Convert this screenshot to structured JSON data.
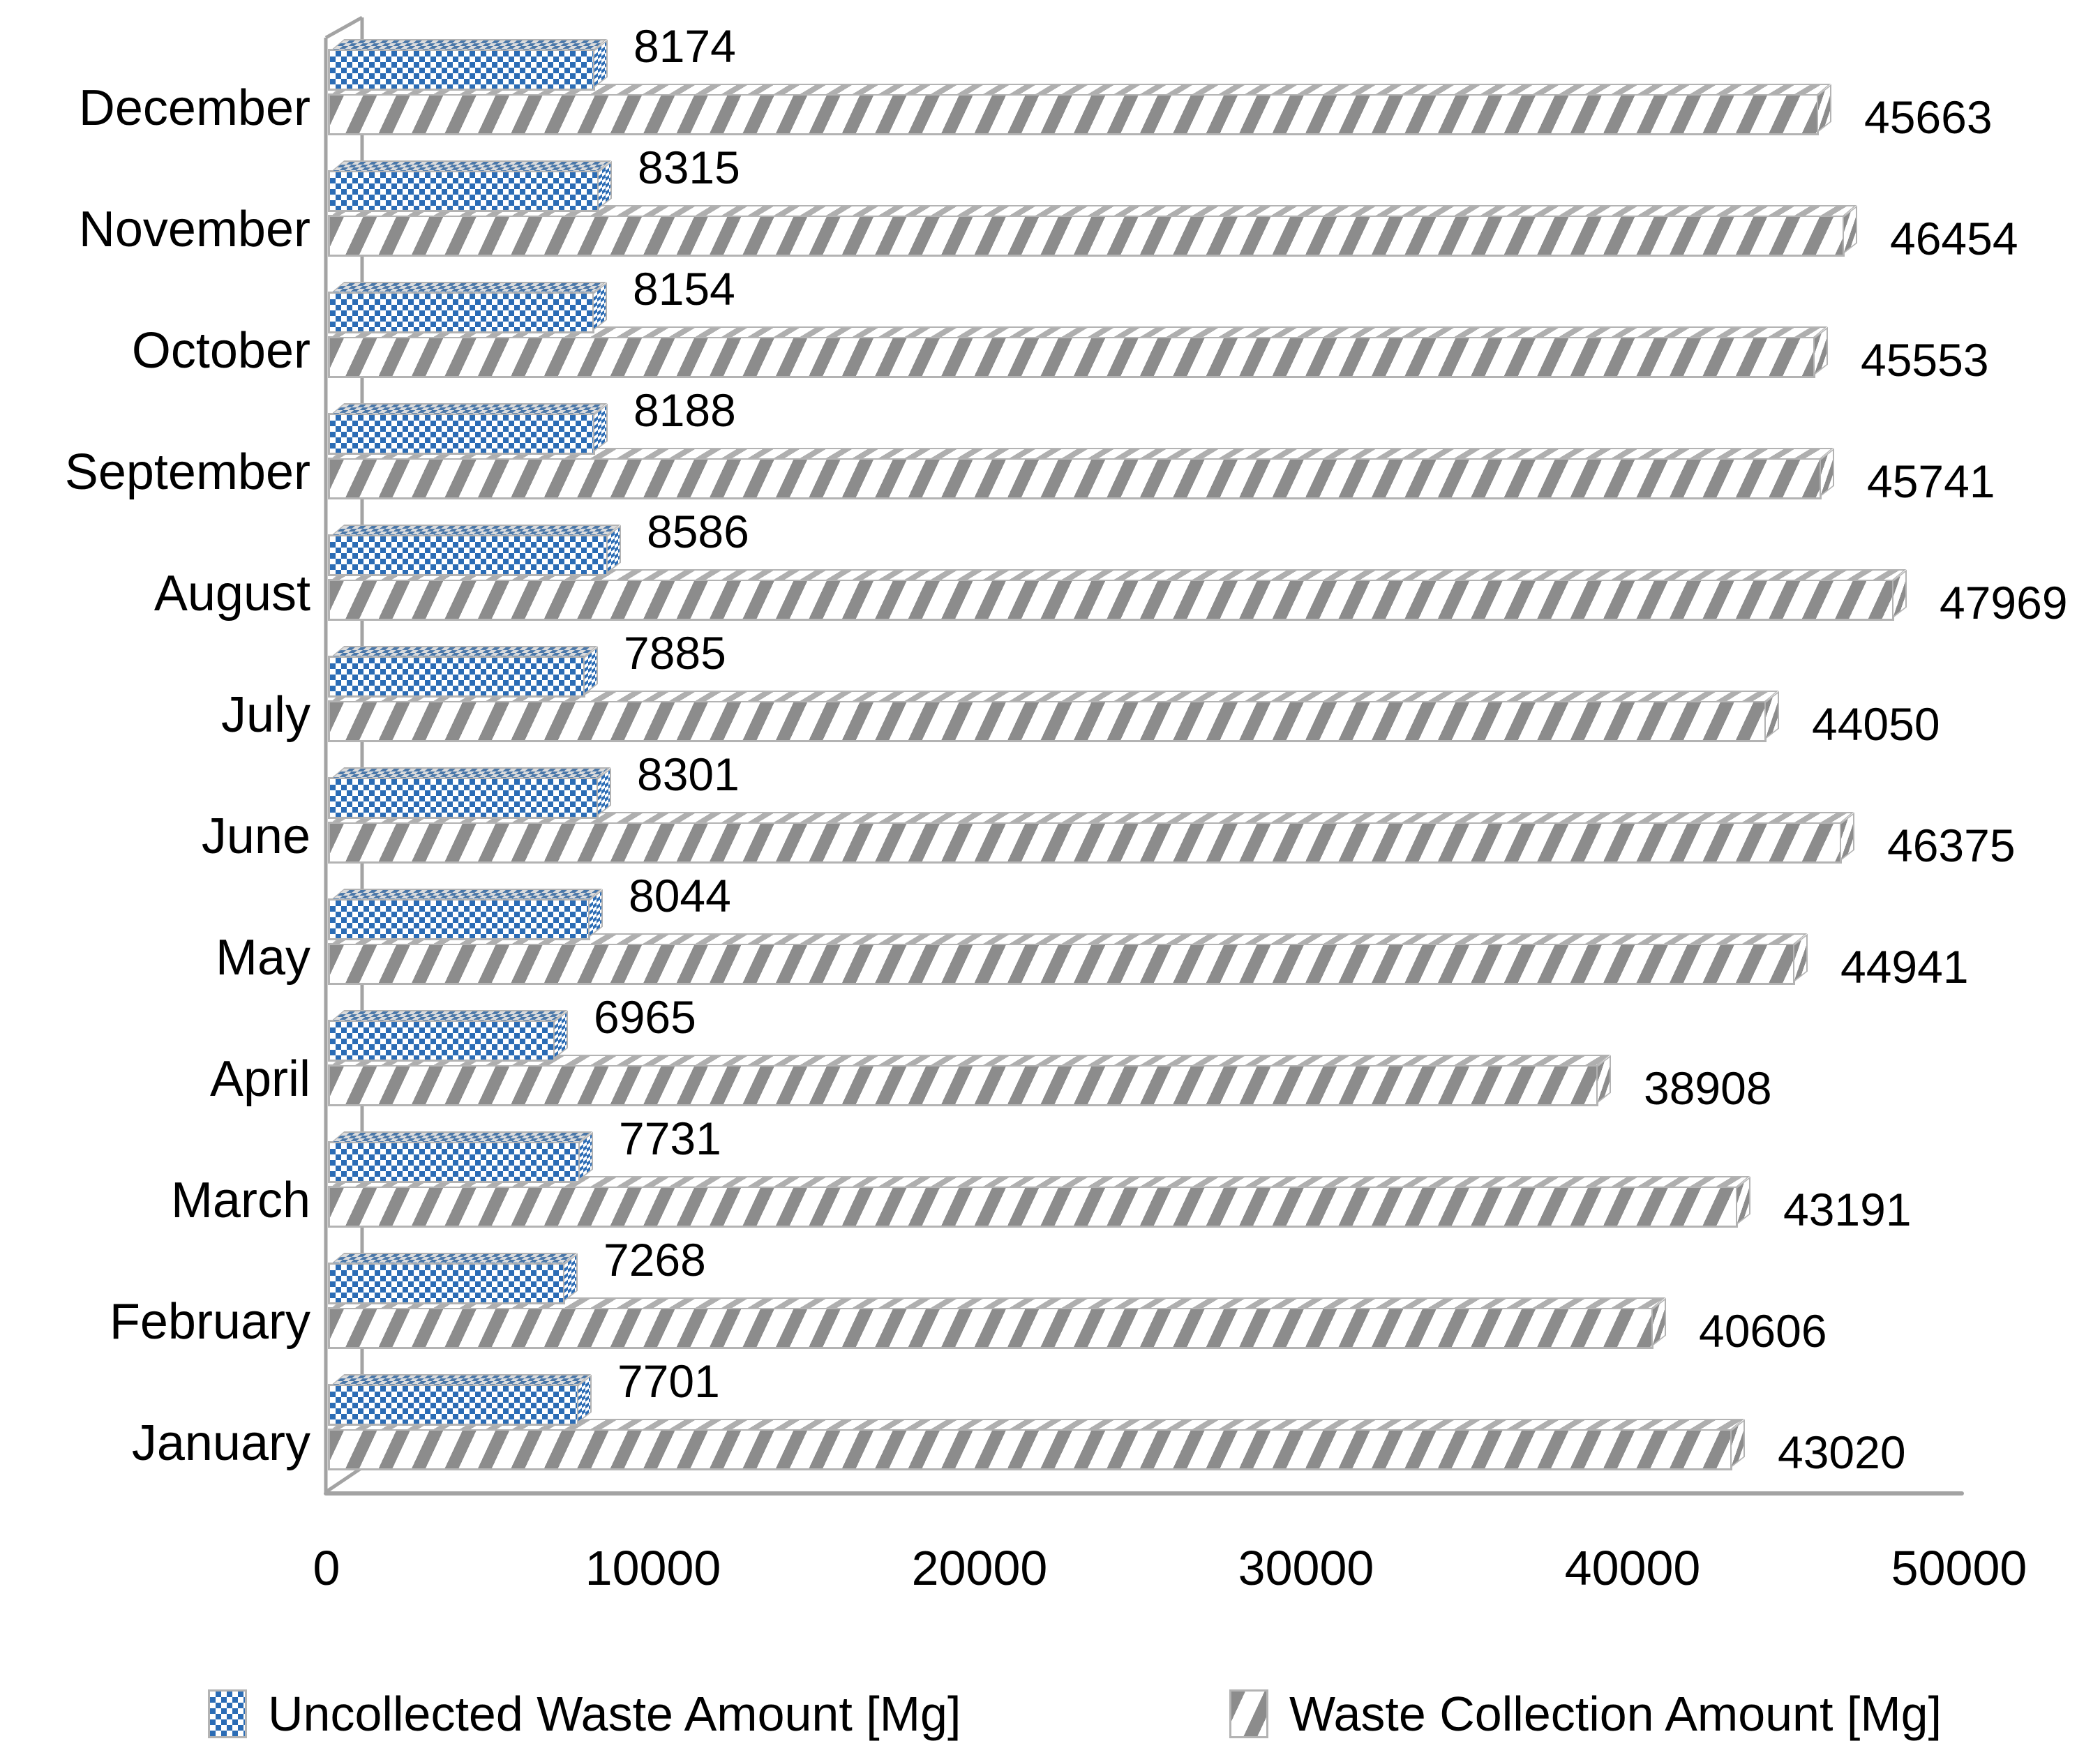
{
  "chart_data": {
    "type": "bar",
    "orientation": "horizontal",
    "title": "",
    "categories": [
      "December",
      "November",
      "October",
      "September",
      "August",
      "July",
      "June",
      "May",
      "April",
      "March",
      "February",
      "January"
    ],
    "series": [
      {
        "name": "Uncollected Waste Amount [Mg]",
        "key": "uncollected-waste",
        "pattern": "checker",
        "color": "#2b6cb5",
        "values": [
          8174,
          8315,
          8154,
          8188,
          8586,
          7885,
          8301,
          8044,
          6965,
          7731,
          7268,
          7701
        ]
      },
      {
        "name": "Waste Collection Amount [Mg]",
        "key": "waste-collection",
        "pattern": "stripe",
        "color": "#8c8c8c",
        "values": [
          45663,
          46454,
          45553,
          45741,
          47969,
          44050,
          46375,
          44941,
          38908,
          43191,
          40606,
          43020
        ]
      }
    ],
    "x_axis": {
      "range": [
        0,
        50000
      ],
      "ticks": [
        "0",
        "10000",
        "20000",
        "30000",
        "40000",
        "50000"
      ],
      "grid": false
    },
    "y_axis": {
      "label": ""
    },
    "legend_position": "bottom",
    "style": {
      "effect": "3d",
      "axis_line_color": "#a3a3a3",
      "text_color": "#000000"
    }
  },
  "legend": {
    "item1": "Uncollected Waste Amount [Mg]",
    "item2": "Waste Collection Amount [Mg]"
  }
}
